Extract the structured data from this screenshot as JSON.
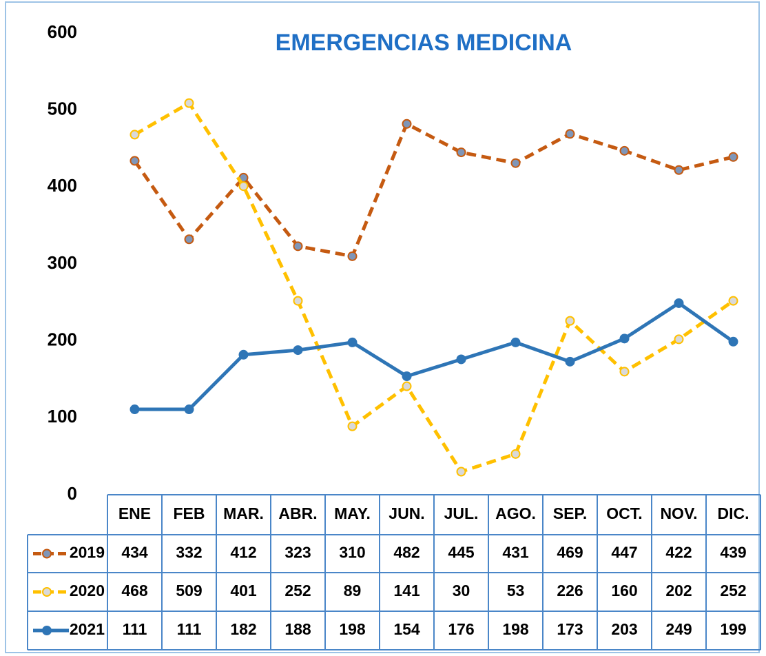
{
  "chart_data": {
    "type": "line",
    "title": "EMERGENCIAS MEDICINA",
    "categories": [
      "ENE",
      "FEB",
      "MAR.",
      "ABR.",
      "MAY.",
      "JUN.",
      "JUL.",
      "AGO.",
      "SEP.",
      "OCT.",
      "NOV.",
      "DIC."
    ],
    "series": [
      {
        "name": "2019",
        "color": "#c55a11",
        "dashed": true,
        "values": [
          434,
          332,
          412,
          323,
          310,
          482,
          445,
          431,
          469,
          447,
          422,
          439
        ]
      },
      {
        "name": "2020",
        "color": "#ffc000",
        "dashed": true,
        "values": [
          468,
          509,
          401,
          252,
          89,
          141,
          30,
          53,
          226,
          160,
          202,
          252
        ]
      },
      {
        "name": "2021",
        "color": "#2e75b6",
        "dashed": false,
        "values": [
          111,
          111,
          182,
          188,
          198,
          154,
          176,
          198,
          173,
          203,
          249,
          199
        ]
      }
    ],
    "ylim": [
      0,
      600
    ],
    "yticks": [
      0,
      100,
      200,
      300,
      400,
      500,
      600
    ],
    "grid": false
  }
}
